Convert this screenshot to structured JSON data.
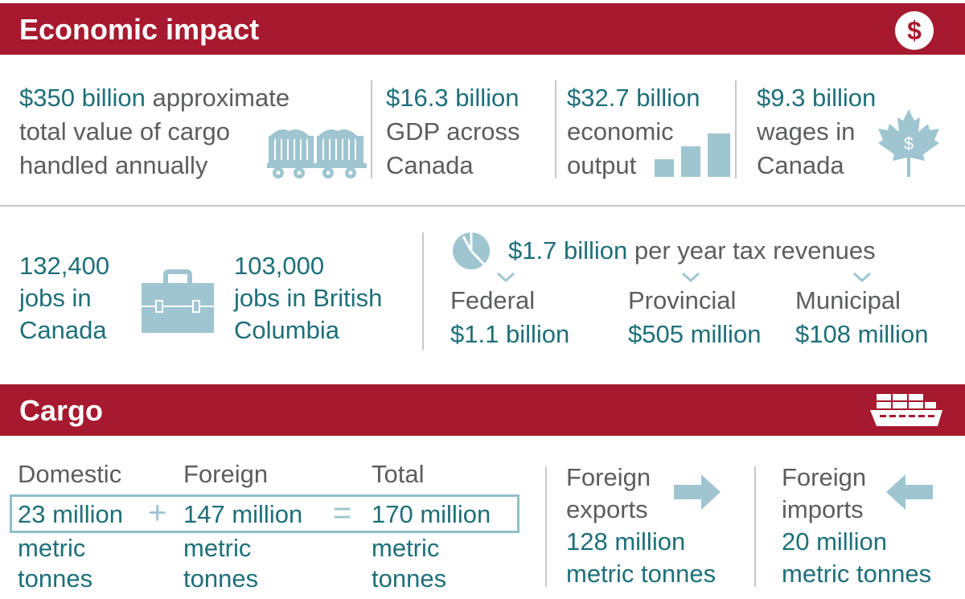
{
  "colors": {
    "banner": "#a6192e",
    "teal": "#1e6f79",
    "gray": "#5c5d5f",
    "icon": "#9ec5d0"
  },
  "economic": {
    "title": "Economic impact",
    "cargo_value": {
      "amount": "$350 billion",
      "l1_rest": " approximate",
      "l2": "total value of cargo",
      "l3": "handled annually"
    },
    "gdp": {
      "amount": "$16.3 billion",
      "l2": "GDP across",
      "l3": "Canada"
    },
    "output": {
      "amount": "$32.7 billion",
      "l2": "economic",
      "l3": "output"
    },
    "wages": {
      "amount": "$9.3 billion",
      "l2": "wages in",
      "l3": "Canada"
    },
    "jobs_canada": {
      "l1": "132,400",
      "l2": "jobs in",
      "l3": "Canada"
    },
    "jobs_bc": {
      "l1": "103,000",
      "l2": "jobs in British",
      "l3": "Columbia"
    },
    "tax": {
      "amount": "$1.7 billion",
      "rest": " per year tax revenues",
      "items": [
        {
          "label": "Federal",
          "value": "$1.1 billion"
        },
        {
          "label": "Provincial",
          "value": "$505 million"
        },
        {
          "label": "Municipal",
          "value": "$108 million"
        }
      ]
    }
  },
  "cargo": {
    "title": "Cargo",
    "domestic": {
      "label": "Domestic",
      "value": "23 million",
      "u1": "metric",
      "u2": "tonnes"
    },
    "foreign": {
      "label": "Foreign",
      "value": "147 million",
      "u1": "metric",
      "u2": "tonnes"
    },
    "total": {
      "label": "Total",
      "value": "170 million",
      "u1": "metric",
      "u2": "tonnes"
    },
    "plus": "+",
    "equals": "=",
    "exports": {
      "l1": "Foreign",
      "l2": "exports",
      "value": "128 million",
      "unit": "metric tonnes"
    },
    "imports": {
      "l1": "Foreign",
      "l2": "imports",
      "value": "20 million",
      "unit": "metric tonnes"
    }
  },
  "icons": [
    "dollar-icon",
    "rail-car-icon",
    "bar-chart-icon",
    "maple-leaf-dollar-icon",
    "briefcase-icon",
    "pie-chart-icon",
    "chevron-down-icon",
    "cargo-ship-icon",
    "arrow-right-icon",
    "arrow-left-icon"
  ]
}
